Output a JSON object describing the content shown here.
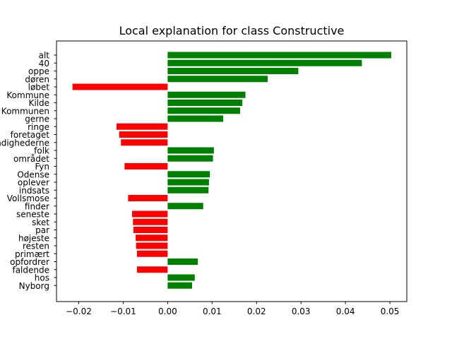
{
  "chart_data": {
    "type": "bar",
    "orientation": "horizontal",
    "title": "Local explanation for class Constructive",
    "xlabel": "",
    "ylabel": "",
    "xlim": [
      -0.025,
      0.0538
    ],
    "xticks": [
      -0.02,
      -0.01,
      0.0,
      0.01,
      0.02,
      0.03,
      0.04,
      0.05
    ],
    "xtick_labels": [
      "−0.02",
      "−0.01",
      "0.00",
      "0.01",
      "0.02",
      "0.03",
      "0.04",
      "0.05"
    ],
    "grid": false,
    "colors": {
      "positive": "#008000",
      "negative": "#ff0000"
    },
    "categories": [
      "alt",
      "40",
      "oppe",
      "døren",
      "løbet",
      "Kommune",
      "Kilde",
      "Kommunen",
      "gerne",
      "ringe",
      "foretaget",
      "myndighederne",
      "folk",
      "området",
      "Fyn",
      "Odense",
      "oplever",
      "indsats",
      "Vollsmose",
      "finder",
      "seneste",
      "sket",
      "par",
      "højeste",
      "resten",
      "primært",
      "opfordrer",
      "faldende",
      "hos",
      "Nyborg"
    ],
    "values": [
      0.0503,
      0.0437,
      0.0294,
      0.0225,
      -0.0214,
      0.0175,
      0.0168,
      0.0163,
      0.0125,
      -0.0115,
      -0.0109,
      -0.0105,
      0.0104,
      0.0102,
      -0.0097,
      0.0095,
      0.0093,
      0.0092,
      -0.0089,
      0.008,
      -0.008,
      -0.0078,
      -0.0077,
      -0.0072,
      -0.0071,
      -0.0069,
      0.0068,
      -0.0069,
      0.0061,
      0.0055
    ]
  }
}
